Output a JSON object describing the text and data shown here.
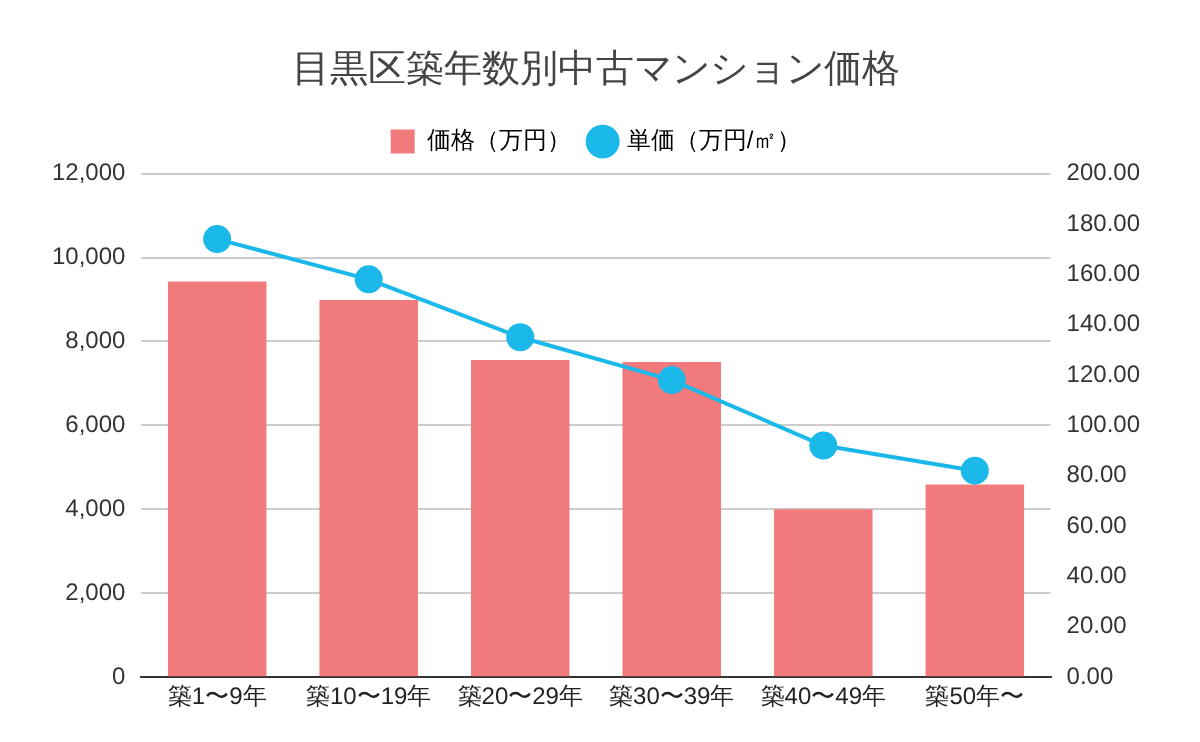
{
  "chart_data": {
    "type": "bar",
    "title": "目黒区築年数別中古マンション価格",
    "categories": [
      "築1〜9年",
      "築10〜19年",
      "築20〜29年",
      "築30〜39年",
      "築40〜49年",
      "築50年〜"
    ],
    "series": [
      {
        "name": "価格（万円）",
        "color": "#f07a7c",
        "values": [
          9430,
          8990,
          7560,
          7510,
          4000,
          4590
        ]
      },
      {
        "name": "単価（万円/㎡）",
        "type": "line",
        "axis": "y2",
        "color": "#1bb8ea",
        "marker": "circle",
        "values": [
          174,
          158,
          135,
          118,
          92,
          82
        ]
      }
    ],
    "ylim": [
      0,
      12000
    ],
    "yticks": [
      {
        "value": 0,
        "label": "0"
      },
      {
        "value": 2000,
        "label": "2,000"
      },
      {
        "value": 4000,
        "label": "4,000"
      },
      {
        "value": 6000,
        "label": "6,000"
      },
      {
        "value": 8000,
        "label": "8,000"
      },
      {
        "value": 10000,
        "label": "10,000"
      },
      {
        "value": 12000,
        "label": "12,000"
      }
    ],
    "y2lim": [
      0,
      200
    ],
    "y2ticks": [
      {
        "value": 0,
        "label": "0.00"
      },
      {
        "value": 20,
        "label": "20.00"
      },
      {
        "value": 40,
        "label": "40.00"
      },
      {
        "value": 60,
        "label": "60.00"
      },
      {
        "value": 80,
        "label": "80.00"
      },
      {
        "value": 100,
        "label": "100.00"
      },
      {
        "value": 120,
        "label": "120.00"
      },
      {
        "value": 140,
        "label": "140.00"
      },
      {
        "value": 160,
        "label": "160.00"
      },
      {
        "value": 180,
        "label": "180.00"
      },
      {
        "value": 200,
        "label": "200.00"
      }
    ],
    "grid": "y",
    "legend": "top"
  }
}
